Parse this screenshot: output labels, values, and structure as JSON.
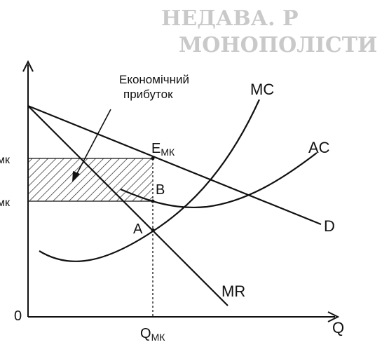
{
  "diagram": {
    "profit_label_line1": "Економічний",
    "profit_label_line2": "прибуток",
    "curve_mc": "MC",
    "curve_ac": "AC",
    "curve_d": "D",
    "curve_mr": "MR",
    "point_e_main": "E",
    "point_e_sub": "МК",
    "point_a": "A",
    "point_b": "B",
    "origin": "0",
    "axis_q": "Q",
    "q_main": "Q",
    "q_sub": "МК",
    "left_label_upper": "мк",
    "left_label_lower": "мк",
    "bleed_top_line1": "НЕДАВА. Р",
    "bleed_top_line2": "МОНОПОЛІСТИ"
  },
  "colors": {
    "ink": "#111111",
    "ghost_text": "#c9c9c9",
    "background": "#ffffff"
  }
}
